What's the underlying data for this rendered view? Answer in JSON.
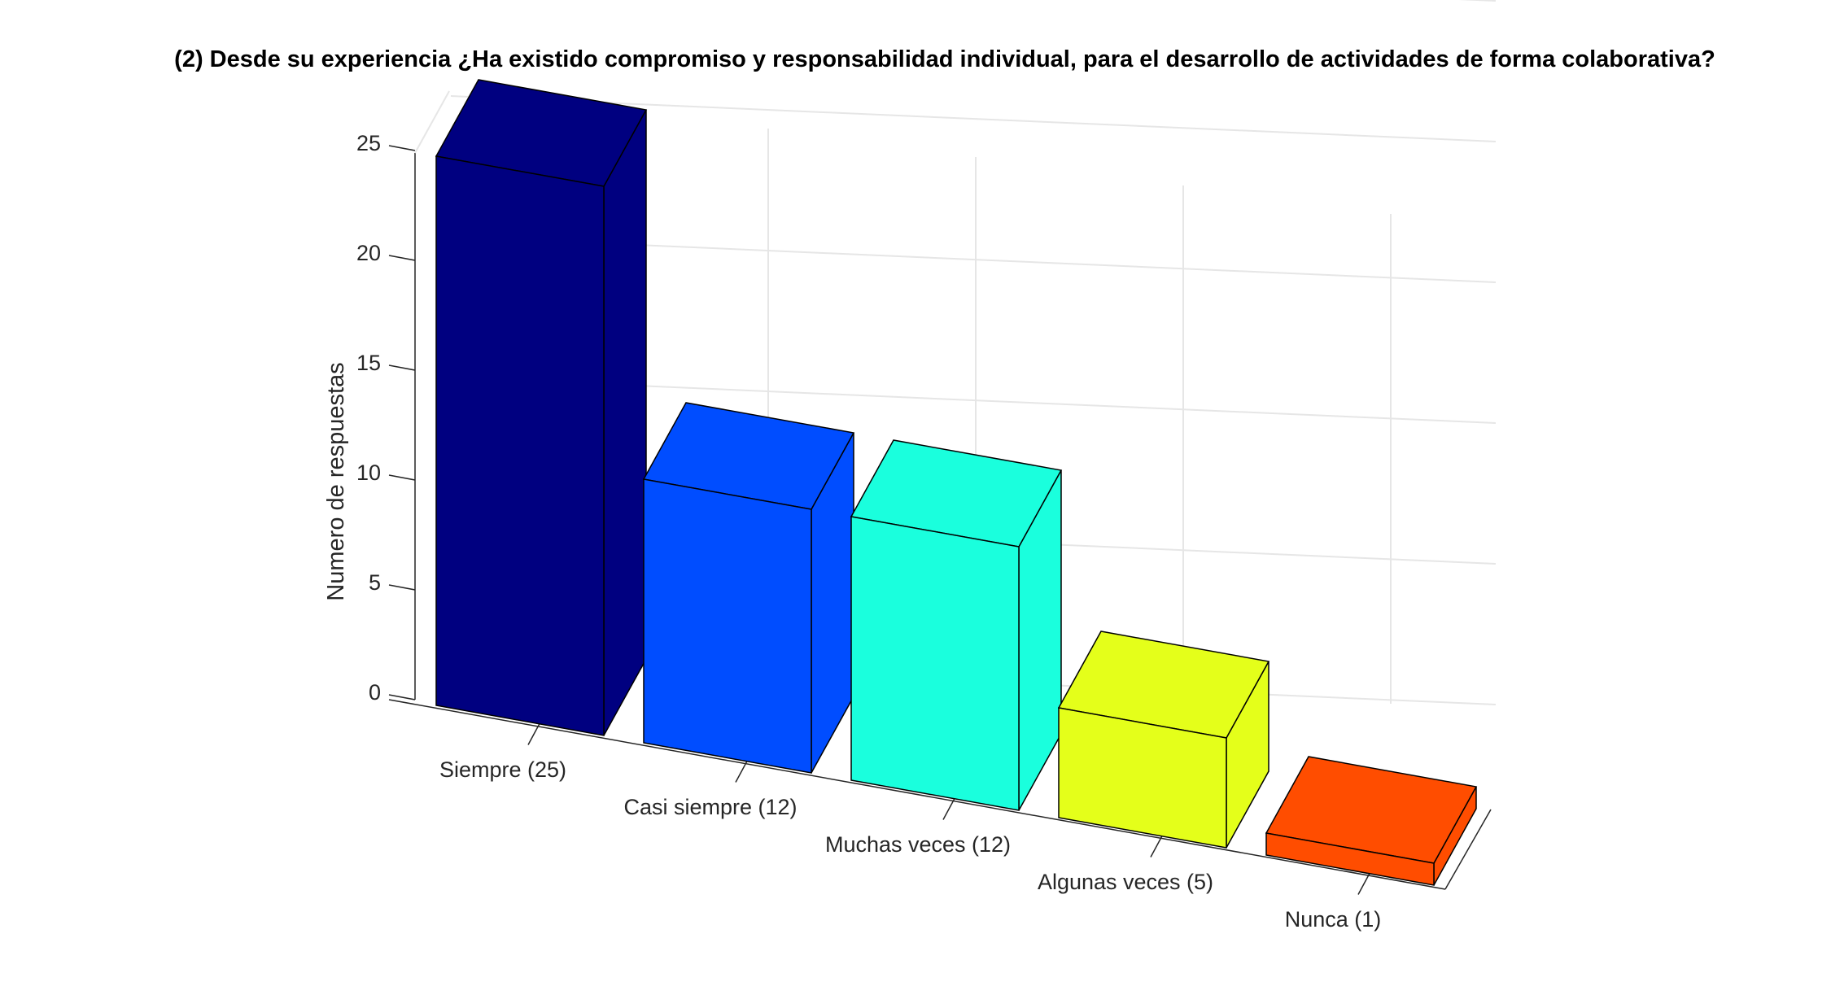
{
  "chart_data": {
    "type": "bar",
    "title": "(2) Desde su experiencia ¿Ha existido compromiso y responsabilidad individual, para el desarrollo de actividades de forma colaborativa?",
    "xlabel": "",
    "ylabel": "Numero de respuestas",
    "categories": [
      "Siempre (25)",
      "Casi siempre (12)",
      "Muchas veces (12)",
      "Algunas veces (5)",
      "Nunca (1)"
    ],
    "values": [
      25,
      12,
      12,
      5,
      1
    ],
    "bar_colors": [
      "#000080",
      "#004dff",
      "#1affdd",
      "#e4ff1a",
      "#ff4d00"
    ],
    "ylim": [
      0,
      25
    ],
    "yticks": [
      "0",
      "5",
      "10",
      "15",
      "20",
      "25"
    ],
    "grid": true,
    "style": "3d-bar"
  }
}
